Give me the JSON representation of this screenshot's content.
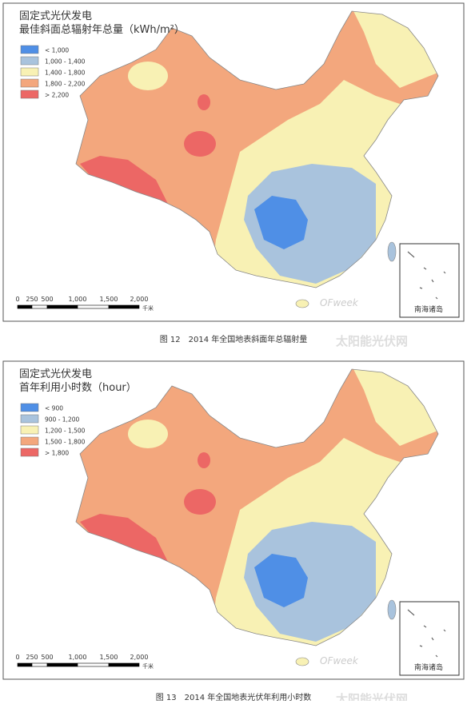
{
  "maps": [
    {
      "title": [
        "固定式光伏发电",
        "最佳斜面总辐射年总量（kWh/m²）"
      ],
      "legend": [
        {
          "label": "< 1,000",
          "color": "#4f8fe6"
        },
        {
          "label": "1,000 - 1,400",
          "color": "#a9c3dd"
        },
        {
          "label": "1,400 - 1,800",
          "color": "#f8f1b4"
        },
        {
          "label": "1,800 - 2,200",
          "color": "#f3a77d"
        },
        {
          "label": "> 2,200",
          "color": "#ec6765"
        }
      ],
      "scale": {
        "ticks": [
          "0",
          "250",
          "500",
          "1,000",
          "1,500",
          "2,000"
        ],
        "unit": "千米"
      },
      "inset": "南海诸岛",
      "watermark": [
        "OFweek",
        "太阳能光伏网"
      ],
      "caption": "图 12　2014 年全国地表斜面年总辐射量"
    },
    {
      "title": [
        "固定式光伏发电",
        "首年利用小时数（hour）"
      ],
      "legend": [
        {
          "label": "< 900",
          "color": "#4f8fe6"
        },
        {
          "label": "900 - 1,200",
          "color": "#a9c3dd"
        },
        {
          "label": "1,200 - 1,500",
          "color": "#f8f1b4"
        },
        {
          "label": "1,500 - 1,800",
          "color": "#f3a77d"
        },
        {
          "label": "> 1,800",
          "color": "#ec6765"
        }
      ],
      "scale": {
        "ticks": [
          "0",
          "250",
          "500",
          "1,000",
          "1,500",
          "2,000"
        ],
        "unit": "千米"
      },
      "inset": "南海诸岛",
      "watermark": [
        "OFweek",
        "太阳能光伏网"
      ],
      "caption": "图 13　2014 年全国地表光伏年利用小时数"
    }
  ]
}
